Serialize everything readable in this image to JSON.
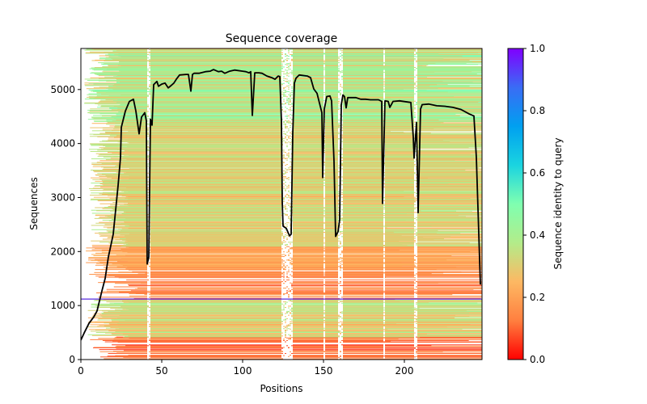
{
  "chart_data": {
    "type": "heatmap",
    "title": "Sequence coverage",
    "xlabel": "Positions",
    "ylabel": "Sequences",
    "xlim": [
      0,
      248
    ],
    "ylim": [
      0,
      5760
    ],
    "x_ticks": [
      0,
      50,
      100,
      150,
      200
    ],
    "y_ticks": [
      0,
      1000,
      2000,
      3000,
      4000,
      5000
    ],
    "grid": false,
    "colorbar": {
      "label": "Sequence identity to query",
      "range": [
        0.0,
        1.0
      ],
      "ticks": [
        "0.0",
        "0.2",
        "0.4",
        "0.6",
        "0.8",
        "1.0"
      ],
      "colormap": "rainbow_r",
      "stops": [
        "#ff0000",
        "#ff7f3f",
        "#fdb863",
        "#b3ec8a",
        "#7fffb0",
        "#1ad4e0",
        "#00a0f0",
        "#3a6cf5",
        "#8000ff"
      ]
    },
    "query_row": {
      "sequence_index": 1120,
      "identity": 1.0,
      "color": "#5a2de0"
    },
    "alignment_bands": [
      {
        "from": 0,
        "to": 420,
        "identity_range": [
          0.05,
          0.18
        ],
        "start_range": [
          5,
          30
        ],
        "fill": 0.55
      },
      {
        "from": 420,
        "to": 1110,
        "identity_range": [
          0.22,
          0.42
        ],
        "start_range": [
          4,
          30
        ],
        "fill": 0.85
      },
      {
        "from": 1130,
        "to": 1650,
        "identity_range": [
          0.08,
          0.2
        ],
        "start_range": [
          5,
          40
        ],
        "fill": 0.55
      },
      {
        "from": 1650,
        "to": 2100,
        "identity_range": [
          0.15,
          0.26
        ],
        "start_range": [
          3,
          30
        ],
        "fill": 0.8
      },
      {
        "from": 2100,
        "to": 4400,
        "identity_range": [
          0.22,
          0.4
        ],
        "start_range": [
          5,
          30
        ],
        "fill": 0.93
      },
      {
        "from": 4400,
        "to": 5760,
        "identity_range": [
          0.24,
          0.52
        ],
        "start_range": [
          2,
          25
        ],
        "fill": 0.95
      }
    ],
    "gap_columns": [
      41,
      42,
      124,
      125,
      126,
      127,
      128,
      129,
      130,
      150,
      159,
      160,
      161,
      187,
      206,
      207
    ],
    "series": [
      {
        "name": "coverage",
        "color": "#000000",
        "x": [
          0,
          2,
          5,
          8,
          10,
          13,
          15,
          17,
          20,
          23,
          24.5,
          25,
          27.5,
          30,
          32.5,
          34,
          36,
          37.5,
          39.5,
          40.5,
          41,
          42,
          43,
          44,
          45,
          47,
          48,
          50,
          52,
          54,
          56,
          57.5,
          59,
          61,
          65,
          66.5,
          68,
          69,
          70,
          73,
          77,
          80,
          82,
          85,
          87,
          89,
          92,
          95,
          100,
          102,
          104,
          105,
          106,
          107.5,
          110,
          112,
          115,
          118,
          120,
          122,
          123,
          124,
          124.5,
          125,
          127,
          129,
          130,
          131,
          132,
          133,
          135,
          140,
          142,
          144,
          146,
          149,
          149.5,
          150.5,
          152,
          154,
          155,
          156.5,
          157.5,
          159,
          160,
          161,
          162,
          163,
          164,
          165,
          170,
          173,
          176,
          179,
          184,
          186,
          186.5,
          188,
          190,
          191,
          193,
          197,
          204,
          205.5,
          206,
          207.5,
          208.5,
          210,
          211,
          215,
          220,
          225,
          230,
          235,
          240,
          243,
          244.5,
          247
        ],
        "y": [
          360,
          490,
          670,
          790,
          900,
          1270,
          1500,
          1900,
          2320,
          3220,
          3740,
          4300,
          4600,
          4780,
          4820,
          4600,
          4180,
          4490,
          4570,
          4420,
          1770,
          1900,
          4450,
          4340,
          5090,
          5150,
          5060,
          5100,
          5120,
          5030,
          5080,
          5120,
          5190,
          5270,
          5280,
          5280,
          4970,
          5280,
          5300,
          5300,
          5330,
          5340,
          5370,
          5330,
          5340,
          5300,
          5340,
          5360,
          5340,
          5330,
          5310,
          5330,
          4520,
          5310,
          5310,
          5300,
          5250,
          5220,
          5190,
          5250,
          5240,
          4420,
          2920,
          2470,
          2430,
          2290,
          2320,
          4190,
          5120,
          5210,
          5270,
          5250,
          5220,
          5010,
          4930,
          4570,
          3370,
          4640,
          4870,
          4880,
          4790,
          3670,
          2280,
          2370,
          2590,
          4720,
          4900,
          4870,
          4660,
          4850,
          4850,
          4820,
          4820,
          4810,
          4810,
          4780,
          2890,
          4790,
          4780,
          4670,
          4780,
          4790,
          4760,
          4120,
          3730,
          4390,
          2720,
          4640,
          4720,
          4730,
          4700,
          4690,
          4670,
          4630,
          4550,
          4510,
          3740,
          1390
        ]
      }
    ]
  }
}
